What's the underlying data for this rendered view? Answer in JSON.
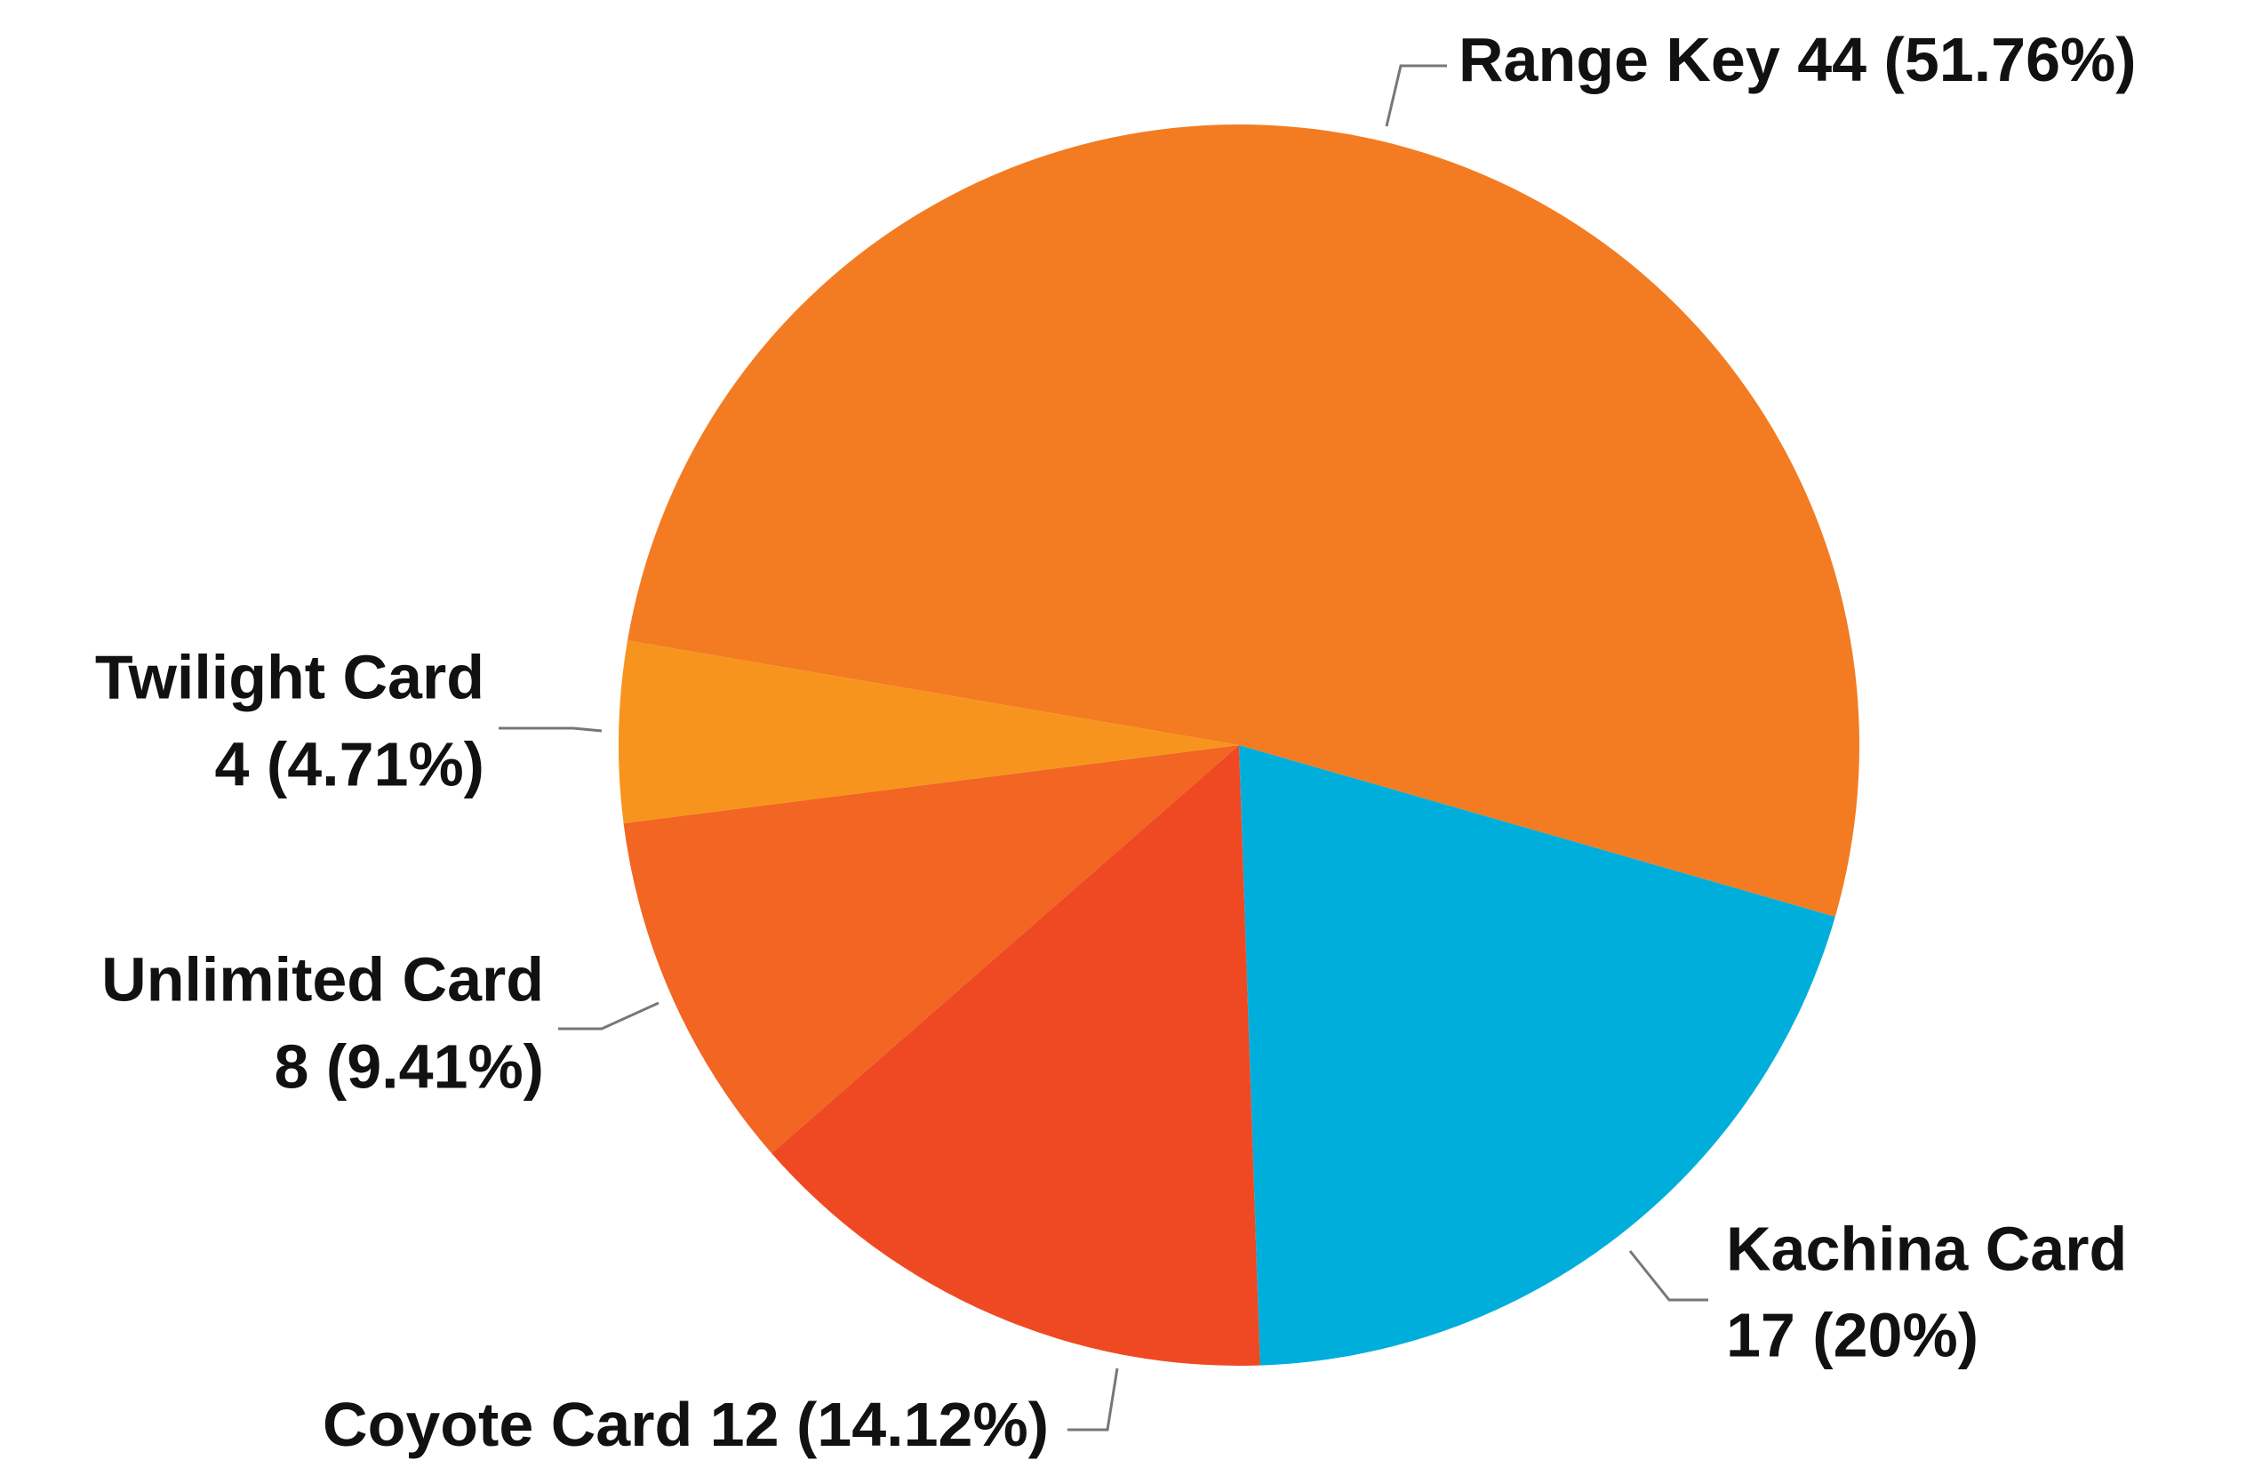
{
  "chart_data": {
    "type": "pie",
    "categories": [
      "Range Key",
      "Kachina Card",
      "Coyote Card",
      "Unlimited Card",
      "Twilight Card"
    ],
    "values": [
      44,
      17,
      12,
      8,
      4
    ],
    "value_labels": [
      "44 (51.76%)",
      "17 (20%)",
      "12 (14.12%)",
      "8 (9.41%)",
      "4 (4.71%)"
    ],
    "colors": [
      "#f37c22",
      "#00aedb",
      "#ef4923",
      "#f26522",
      "#f7941d"
    ]
  }
}
